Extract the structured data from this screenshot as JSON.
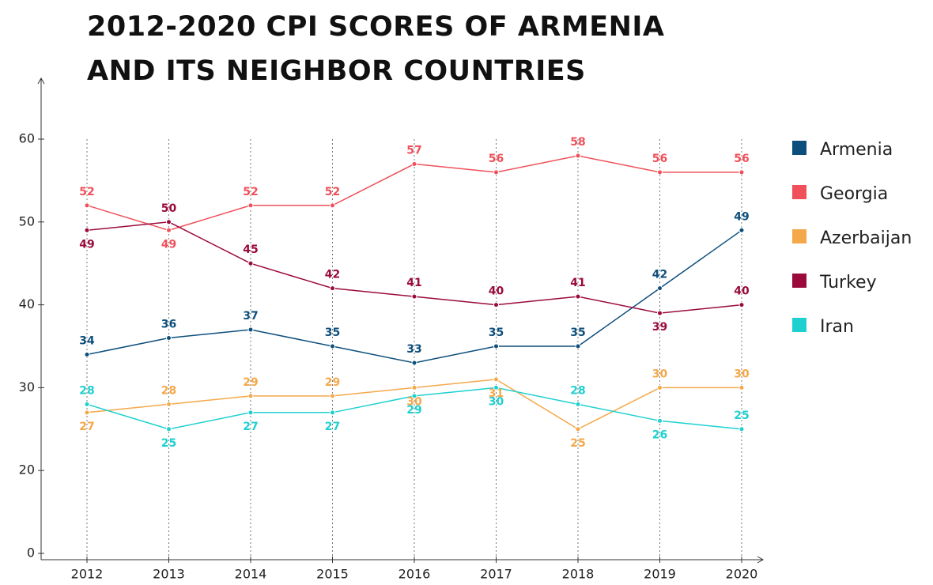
{
  "chart_data": {
    "type": "line",
    "title": "2012-2020 CPI SCORES OF ARMENIA AND ITS NEIGHBOR COUNTRIES",
    "categories": [
      "2012",
      "2013",
      "2014",
      "2015",
      "2016",
      "2017",
      "2018",
      "2019",
      "2020"
    ],
    "series": [
      {
        "name": "Armenia",
        "color": "#0d4f7c",
        "values": [
          34,
          36,
          37,
          35,
          33,
          35,
          35,
          42,
          49
        ]
      },
      {
        "name": "Georgia",
        "color": "#f0505a",
        "values": [
          52,
          49,
          52,
          52,
          57,
          56,
          58,
          56,
          56
        ]
      },
      {
        "name": "Azerbaijan",
        "color": "#f5a84a",
        "values": [
          27,
          28,
          29,
          29,
          30,
          31,
          25,
          30,
          30
        ]
      },
      {
        "name": "Turkey",
        "color": "#9b0a3c",
        "values": [
          49,
          50,
          45,
          42,
          41,
          40,
          41,
          39,
          40
        ]
      },
      {
        "name": "Iran",
        "color": "#1fd0d0",
        "values": [
          28,
          25,
          27,
          27,
          29,
          30,
          28,
          26,
          25
        ]
      }
    ],
    "ylim": [
      0,
      60
    ],
    "yticks": [
      0,
      20,
      30,
      40,
      50,
      60
    ],
    "y_axis_break": [
      0,
      20
    ],
    "grid": "vertical-dashed",
    "legend": "right",
    "data_labels": true
  }
}
